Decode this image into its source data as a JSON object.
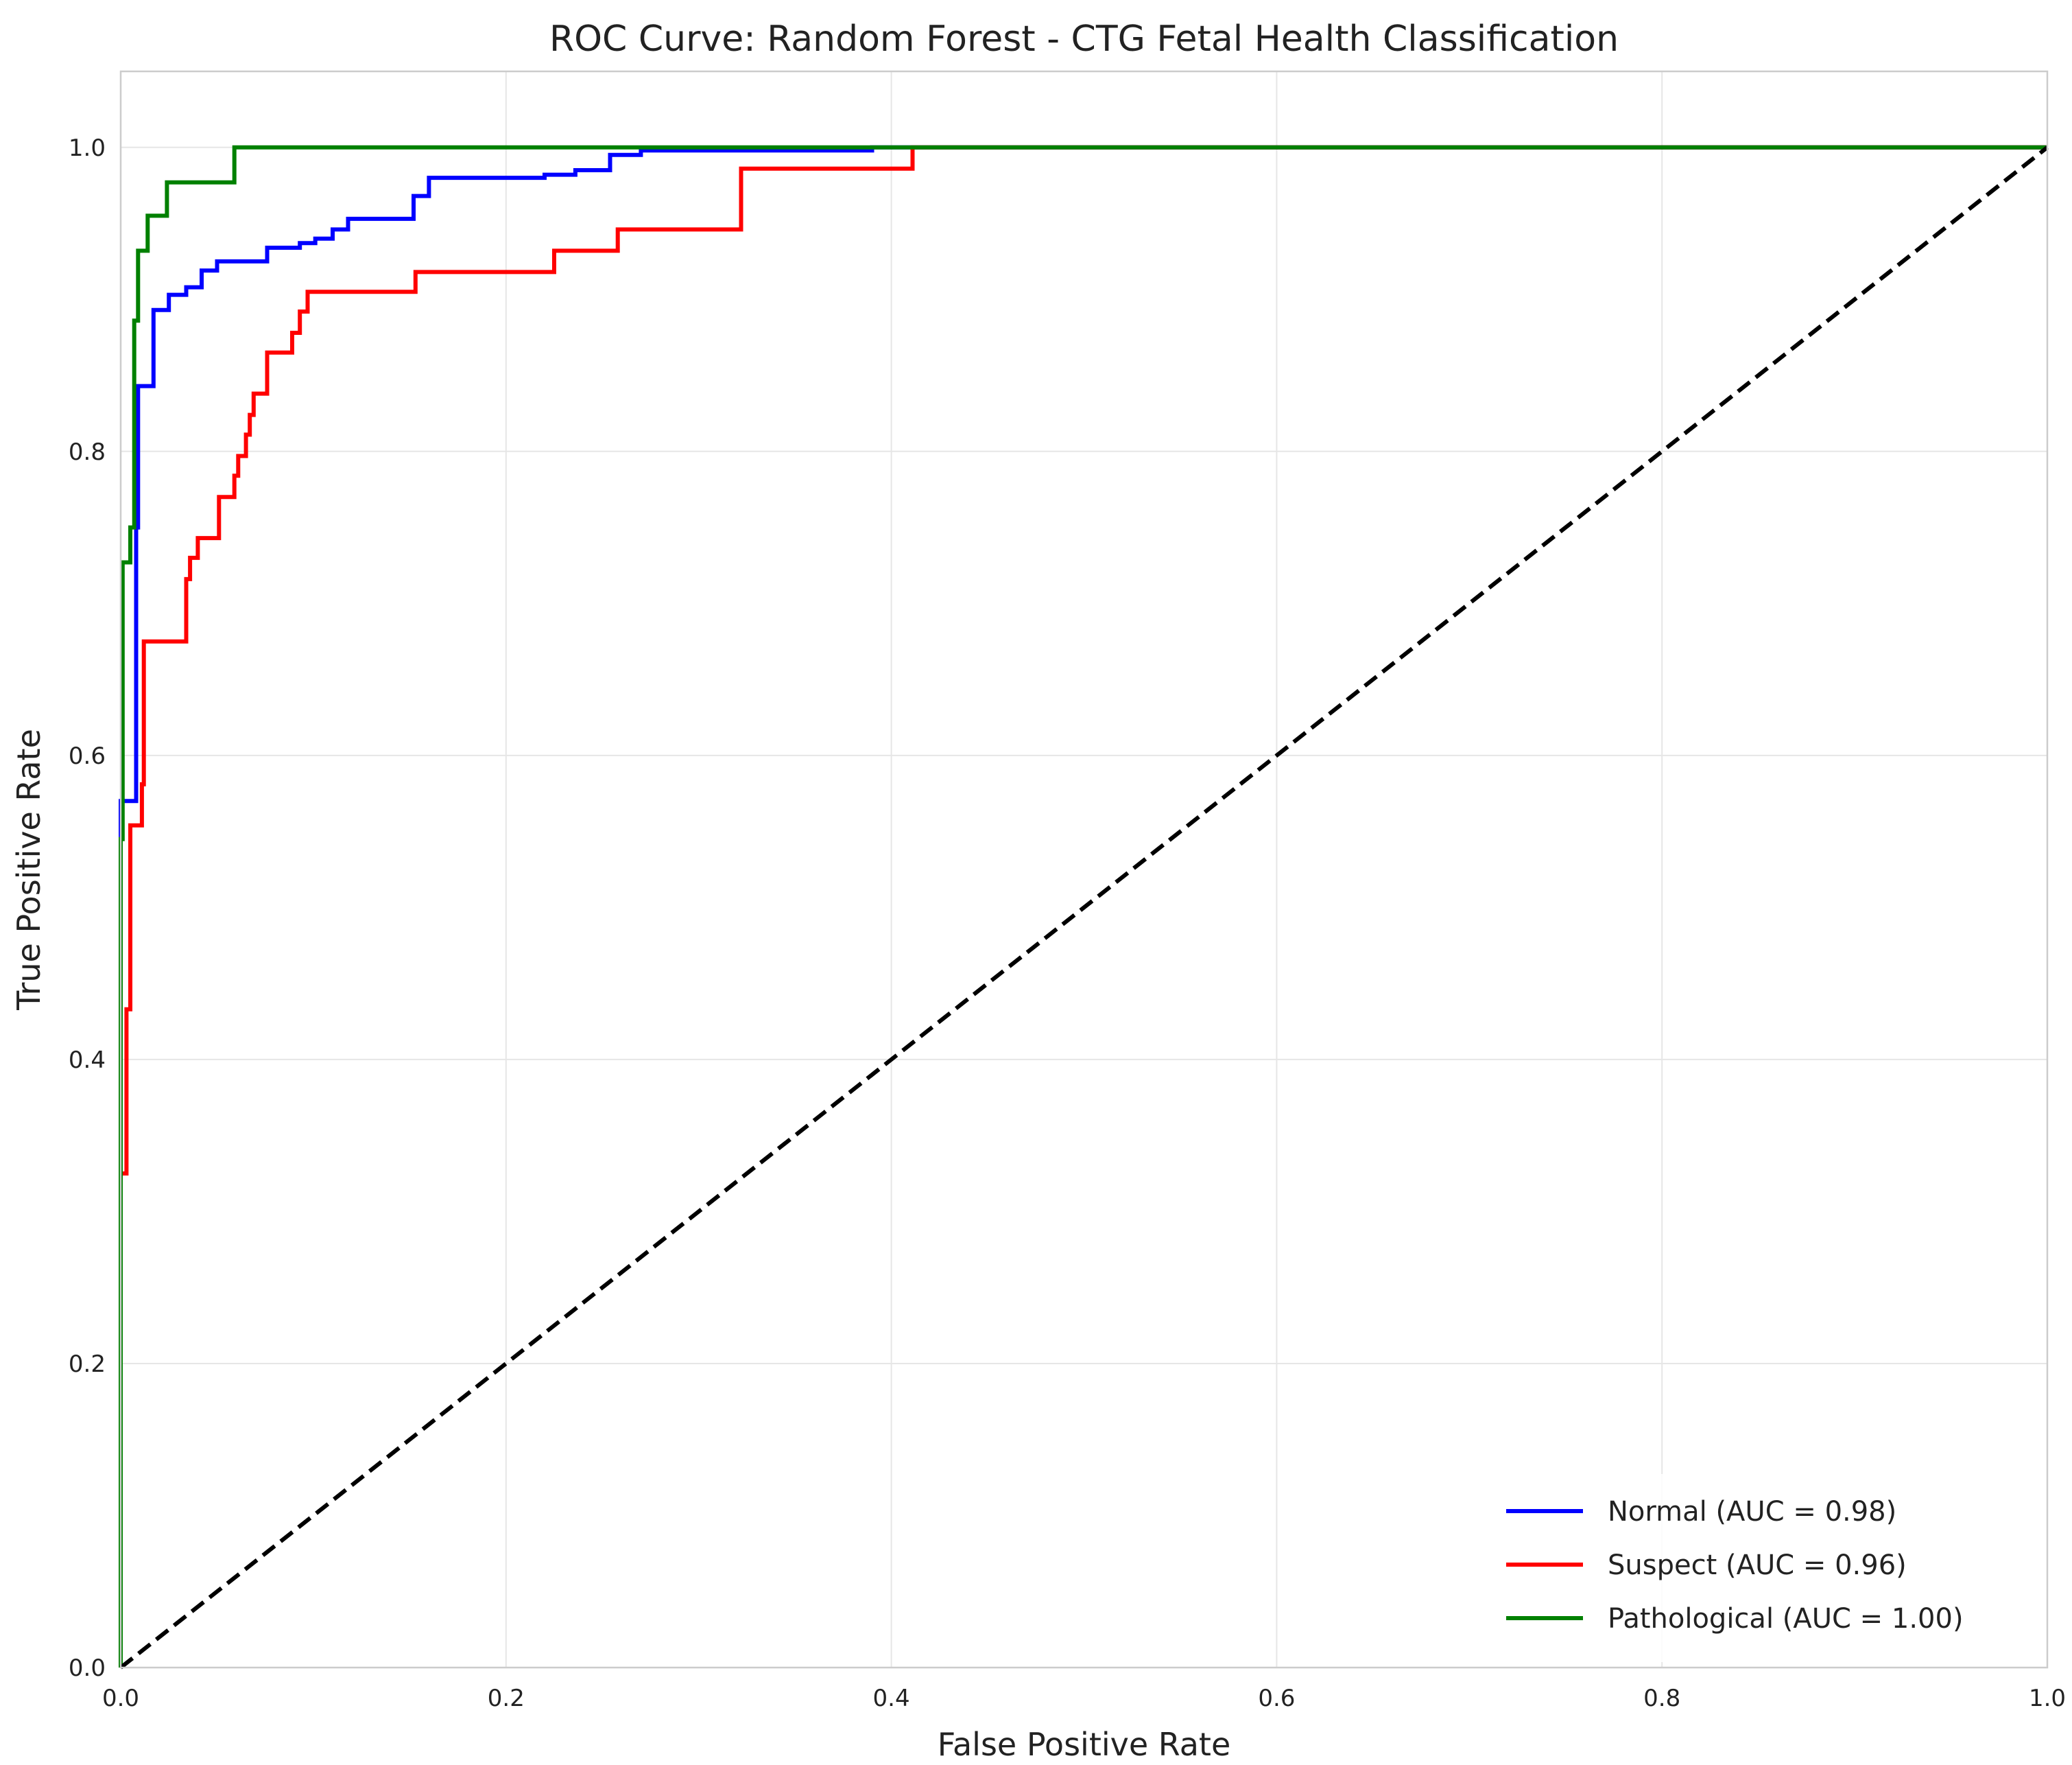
{
  "chart_data": {
    "type": "line",
    "title": "ROC Curve: Random Forest - CTG Fetal Health Classification",
    "xlabel": "False Positive Rate",
    "ylabel": "True Positive Rate",
    "xlim": [
      0.0,
      1.0
    ],
    "ylim": [
      0.0,
      1.05
    ],
    "xticks": [
      0.0,
      0.2,
      0.4,
      0.6,
      0.8,
      1.0
    ],
    "yticks": [
      0.0,
      0.2,
      0.4,
      0.6,
      0.8,
      1.0
    ],
    "xtick_labels": [
      "0.0",
      "0.2",
      "0.4",
      "0.6",
      "0.8",
      "1.0"
    ],
    "ytick_labels": [
      "0.0",
      "0.2",
      "0.4",
      "0.6",
      "0.8",
      "1.0"
    ],
    "grid": true,
    "legend_position": "lower-right",
    "series": [
      {
        "name": "Normal (AUC = 0.98)",
        "color": "#0000ff",
        "points": [
          [
            0.0,
            0.0
          ],
          [
            0.0,
            0.57
          ],
          [
            0.008,
            0.57
          ],
          [
            0.008,
            0.75
          ],
          [
            0.009,
            0.75
          ],
          [
            0.009,
            0.843
          ],
          [
            0.017,
            0.843
          ],
          [
            0.017,
            0.893
          ],
          [
            0.025,
            0.893
          ],
          [
            0.025,
            0.903
          ],
          [
            0.034,
            0.903
          ],
          [
            0.034,
            0.908
          ],
          [
            0.042,
            0.908
          ],
          [
            0.042,
            0.919
          ],
          [
            0.05,
            0.919
          ],
          [
            0.05,
            0.925
          ],
          [
            0.076,
            0.925
          ],
          [
            0.076,
            0.934
          ],
          [
            0.093,
            0.934
          ],
          [
            0.093,
            0.937
          ],
          [
            0.101,
            0.937
          ],
          [
            0.101,
            0.94
          ],
          [
            0.11,
            0.94
          ],
          [
            0.11,
            0.946
          ],
          [
            0.118,
            0.946
          ],
          [
            0.118,
            0.953
          ],
          [
            0.152,
            0.953
          ],
          [
            0.152,
            0.968
          ],
          [
            0.16,
            0.968
          ],
          [
            0.16,
            0.98
          ],
          [
            0.22,
            0.98
          ],
          [
            0.22,
            0.982
          ],
          [
            0.236,
            0.982
          ],
          [
            0.236,
            0.985
          ],
          [
            0.254,
            0.985
          ],
          [
            0.254,
            0.995
          ],
          [
            0.27,
            0.995
          ],
          [
            0.27,
            0.998
          ],
          [
            0.39,
            0.998
          ],
          [
            0.39,
            1.0
          ],
          [
            1.0,
            1.0
          ]
        ]
      },
      {
        "name": "Suspect (AUC = 0.96)",
        "color": "#ff0000",
        "points": [
          [
            0.0,
            0.0
          ],
          [
            0.0,
            0.325
          ],
          [
            0.003,
            0.325
          ],
          [
            0.003,
            0.433
          ],
          [
            0.005,
            0.433
          ],
          [
            0.005,
            0.554
          ],
          [
            0.011,
            0.554
          ],
          [
            0.011,
            0.581
          ],
          [
            0.012,
            0.581
          ],
          [
            0.012,
            0.675
          ],
          [
            0.034,
            0.675
          ],
          [
            0.034,
            0.716
          ],
          [
            0.036,
            0.716
          ],
          [
            0.036,
            0.73
          ],
          [
            0.04,
            0.73
          ],
          [
            0.04,
            0.743
          ],
          [
            0.051,
            0.743
          ],
          [
            0.051,
            0.77
          ],
          [
            0.059,
            0.77
          ],
          [
            0.059,
            0.784
          ],
          [
            0.061,
            0.784
          ],
          [
            0.061,
            0.797
          ],
          [
            0.065,
            0.797
          ],
          [
            0.065,
            0.811
          ],
          [
            0.067,
            0.811
          ],
          [
            0.067,
            0.824
          ],
          [
            0.069,
            0.824
          ],
          [
            0.069,
            0.838
          ],
          [
            0.076,
            0.838
          ],
          [
            0.076,
            0.865
          ],
          [
            0.089,
            0.865
          ],
          [
            0.089,
            0.878
          ],
          [
            0.093,
            0.878
          ],
          [
            0.093,
            0.892
          ],
          [
            0.097,
            0.892
          ],
          [
            0.097,
            0.905
          ],
          [
            0.153,
            0.905
          ],
          [
            0.153,
            0.918
          ],
          [
            0.225,
            0.918
          ],
          [
            0.225,
            0.932
          ],
          [
            0.258,
            0.932
          ],
          [
            0.258,
            0.946
          ],
          [
            0.322,
            0.946
          ],
          [
            0.322,
            0.986
          ],
          [
            0.411,
            0.986
          ],
          [
            0.411,
            1.0
          ],
          [
            1.0,
            1.0
          ]
        ]
      },
      {
        "name": "Pathological (AUC = 1.00)",
        "color": "#008000",
        "points": [
          [
            0.0,
            0.0
          ],
          [
            0.0,
            0.545
          ],
          [
            0.001,
            0.545
          ],
          [
            0.001,
            0.727
          ],
          [
            0.005,
            0.727
          ],
          [
            0.005,
            0.75
          ],
          [
            0.007,
            0.75
          ],
          [
            0.007,
            0.886
          ],
          [
            0.009,
            0.886
          ],
          [
            0.009,
            0.932
          ],
          [
            0.014,
            0.932
          ],
          [
            0.014,
            0.955
          ],
          [
            0.024,
            0.955
          ],
          [
            0.024,
            0.977
          ],
          [
            0.059,
            0.977
          ],
          [
            0.059,
            1.0
          ],
          [
            1.0,
            1.0
          ]
        ]
      }
    ],
    "reference_line": {
      "color": "#000000",
      "style": "dashed",
      "points": [
        [
          0.0,
          0.0
        ],
        [
          1.0,
          1.0
        ]
      ]
    }
  }
}
